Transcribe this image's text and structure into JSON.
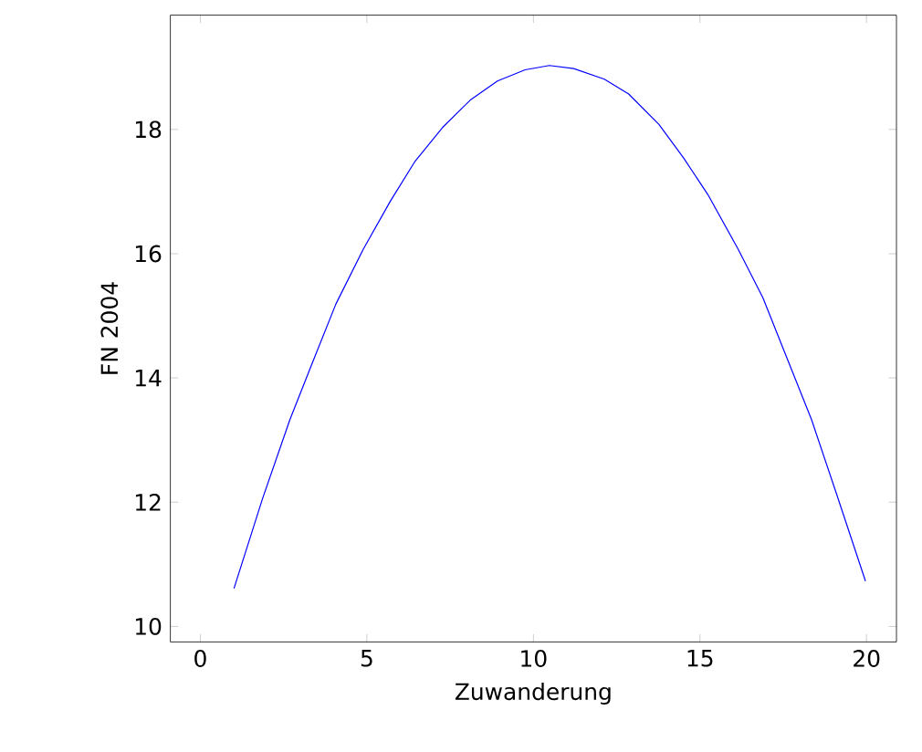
{
  "chart_data": {
    "type": "line",
    "xlabel": "Zuwanderung",
    "ylabel": "FN 2004",
    "x": [
      1.01,
      1.87,
      2.69,
      3.34,
      4.07,
      4.89,
      5.71,
      6.45,
      7.27,
      8.1,
      8.92,
      9.75,
      10.48,
      11.21,
      12.13,
      12.86,
      13.77,
      14.51,
      15.24,
      16.15,
      16.89,
      17.62,
      18.35,
      19.09,
      19.97
    ],
    "series": [
      {
        "color": "#0000ff",
        "values": [
          10.61,
          12.06,
          13.33,
          14.21,
          15.19,
          16.07,
          16.85,
          17.49,
          18.03,
          18.47,
          18.78,
          18.96,
          19.03,
          18.98,
          18.81,
          18.57,
          18.08,
          17.54,
          16.95,
          16.07,
          15.29,
          14.31,
          13.33,
          12.15,
          10.73
        ]
      }
    ],
    "xlim": [
      -0.9,
      20.9
    ],
    "ylim": [
      9.75,
      19.84
    ],
    "xticks": [
      0,
      5,
      10,
      15,
      20
    ],
    "yticks": [
      10,
      12,
      14,
      16,
      18
    ]
  }
}
